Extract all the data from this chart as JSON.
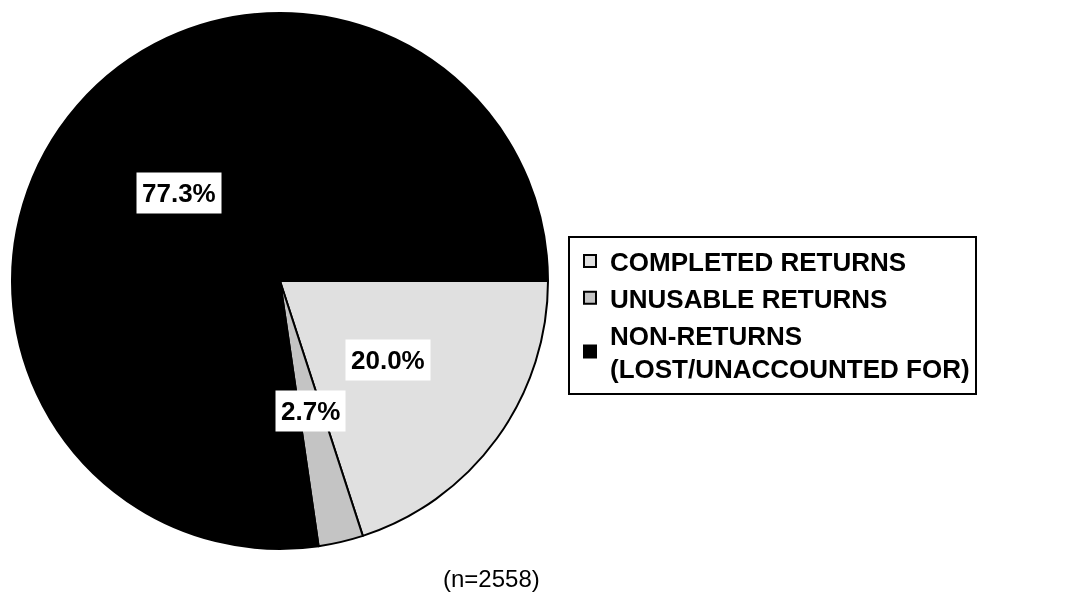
{
  "chart_data": {
    "type": "pie",
    "categories": [
      "COMPLETED RETURNS",
      "UNUSABLE RETURNS",
      "NON-RETURNS\n(LOST/UNACCOUNTED FOR)"
    ],
    "values": [
      20.0,
      2.7,
      77.3
    ],
    "colors": [
      "#e0e0e0",
      "#c4c4c4",
      "#000000"
    ],
    "value_labels": [
      "20.0%",
      "2.7%",
      "77.3%"
    ],
    "legend": "right",
    "annotations": [
      "(n=2558)"
    ]
  }
}
